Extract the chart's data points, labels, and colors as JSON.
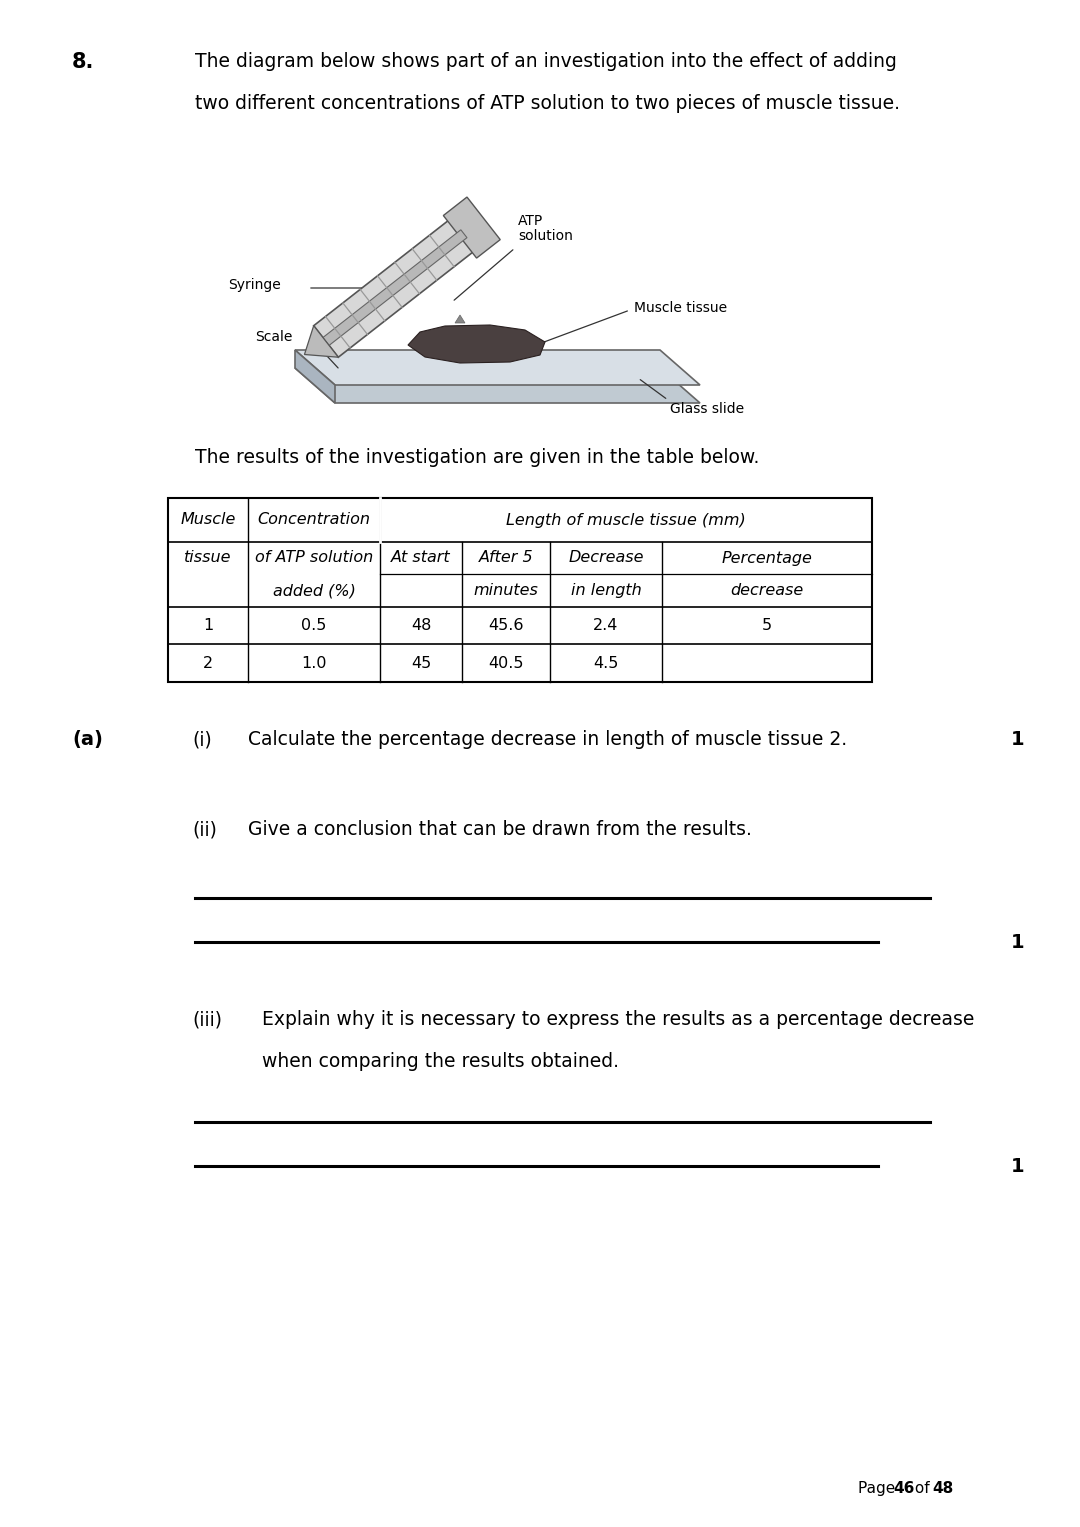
{
  "background_color": "#ffffff",
  "page_width": 10.8,
  "page_height": 15.27,
  "question_number": "8.",
  "question_text_line1": "The diagram below shows part of an investigation into the effect of adding",
  "question_text_line2": "two different concentrations of ATP solution to two pieces of muscle tissue.",
  "results_intro": "The results of the investigation are given in the table below.",
  "table_data": [
    [
      "1",
      "0.5",
      "48",
      "45.6",
      "2.4",
      "5"
    ],
    [
      "2",
      "1.0",
      "45",
      "40.5",
      "4.5",
      ""
    ]
  ],
  "part_a_label": "(a)",
  "part_a_i_text": "Calculate the percentage decrease in length of muscle tissue 2.",
  "part_a_i_mark": "1",
  "part_a_ii_text": "Give a conclusion that can be drawn from the results.",
  "part_a_ii_mark": "1",
  "part_a_iii_text1": "Explain why it is necessary to express the results as a percentage decrease",
  "part_a_iii_text2": "when comparing the results obtained.",
  "part_a_iii_mark": "1",
  "page_footer_plain": "Page ",
  "page_footer_bold1": "46",
  "page_footer_mid": " of ",
  "page_footer_bold2": "48"
}
